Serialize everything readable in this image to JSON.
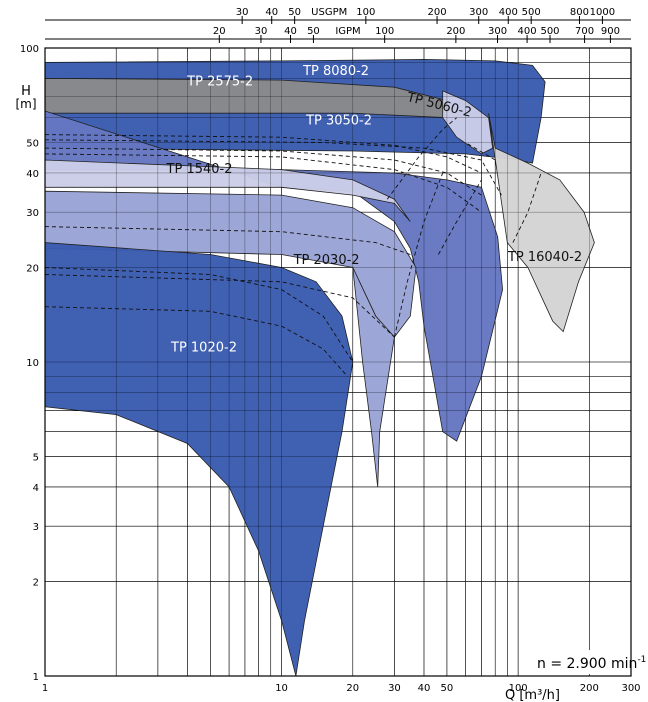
{
  "chart_data": {
    "type": "area",
    "title": "",
    "x_scale": "log",
    "y_scale": "log",
    "xlim": [
      1,
      300
    ],
    "ylim": [
      1,
      100
    ],
    "xlabel": "Q [m³/h]",
    "ylabel_top": "H",
    "ylabel_unit": "[m]",
    "annotation": "n = 2.900 min",
    "annotation_sup": "-1",
    "x_ticks": [
      {
        "v": 1,
        "label": "1"
      },
      {
        "v": 10,
        "label": "10"
      },
      {
        "v": 20,
        "label": "20"
      },
      {
        "v": 30,
        "label": "30"
      },
      {
        "v": 40,
        "label": "40"
      },
      {
        "v": 50,
        "label": "50"
      },
      {
        "v": 100,
        "label": "100"
      },
      {
        "v": 200,
        "label": "200"
      },
      {
        "v": 300,
        "label": "300"
      }
    ],
    "y_ticks": [
      {
        "v": 1,
        "label": "1"
      },
      {
        "v": 2,
        "label": "2"
      },
      {
        "v": 3,
        "label": "3"
      },
      {
        "v": 4,
        "label": "4"
      },
      {
        "v": 5,
        "label": "5"
      },
      {
        "v": 10,
        "label": "10"
      },
      {
        "v": 20,
        "label": "20"
      },
      {
        "v": 30,
        "label": "30"
      },
      {
        "v": 40,
        "label": "40"
      },
      {
        "v": 50,
        "label": "50"
      },
      {
        "v": 100,
        "label": "100"
      }
    ],
    "top_axis_usgpm": {
      "unit_label": "USGPM",
      "unit_at": 70,
      "ticks": [
        {
          "v": 30,
          "label": "30"
        },
        {
          "v": 40,
          "label": "40"
        },
        {
          "v": 50,
          "label": "50"
        },
        {
          "v": 100,
          "label": "100"
        },
        {
          "v": 200,
          "label": "200"
        },
        {
          "v": 300,
          "label": "300"
        },
        {
          "v": 400,
          "label": "400"
        },
        {
          "v": 500,
          "label": "500"
        },
        {
          "v": 800,
          "label": "800"
        },
        {
          "v": 1000,
          "label": "1000"
        }
      ]
    },
    "top_axis_igpm": {
      "unit_label": "IGPM",
      "unit_at": 70,
      "ticks": [
        {
          "v": 20,
          "label": "20"
        },
        {
          "v": 30,
          "label": "30"
        },
        {
          "v": 40,
          "label": "40"
        },
        {
          "v": 50,
          "label": "50"
        },
        {
          "v": 100,
          "label": "100"
        },
        {
          "v": 200,
          "label": "200"
        },
        {
          "v": 300,
          "label": "300"
        },
        {
          "v": 400,
          "label": "400"
        },
        {
          "v": 500,
          "label": "500"
        },
        {
          "v": 700,
          "label": "700"
        },
        {
          "v": 900,
          "label": "900"
        }
      ]
    },
    "colors": {
      "dark_blue": "#3a5bb0",
      "mid_blue": "#6577c2",
      "light_blue": "#9aa4d6",
      "pale_blue": "#cbcde8",
      "dark_grey": "#8a8a8a",
      "light_grey": "#d4d4d4",
      "grid": "#000000",
      "label_light": "#ffffff",
      "label_dark": "#111111"
    },
    "series": [
      {
        "name": "TP 8080-2",
        "label": "TP 8080-2",
        "color": "#3a5bb0",
        "label_color": "#ffffff",
        "label_at": [
          17,
          82
        ],
        "outline": [
          [
            1,
            90
          ],
          [
            1,
            48
          ],
          [
            20,
            47
          ],
          [
            60,
            46
          ],
          [
            100,
            44
          ],
          [
            115,
            43
          ],
          [
            125,
            60
          ],
          [
            130,
            78
          ],
          [
            115,
            88
          ],
          [
            80,
            91
          ],
          [
            40,
            92
          ],
          [
            10,
            91
          ],
          [
            1,
            90
          ]
        ],
        "dashed": []
      },
      {
        "name": "TP 16040-2",
        "label": "TP 16040-2",
        "color": "#d4d4d4",
        "label_color": "#111111",
        "label_at": [
          130,
          21
        ],
        "outline": [
          [
            75,
            62
          ],
          [
            80,
            48
          ],
          [
            110,
            43
          ],
          [
            150,
            38
          ],
          [
            190,
            30
          ],
          [
            210,
            24
          ],
          [
            180,
            18
          ],
          [
            155,
            12.5
          ],
          [
            140,
            13.5
          ],
          [
            110,
            20
          ],
          [
            90,
            24
          ],
          [
            75,
            62
          ]
        ],
        "dashed": []
      },
      {
        "name": "TP 2575-2",
        "label": "TP 2575-2",
        "color": "#8a8a8a",
        "label_color": "#ffffff",
        "label_at": [
          5.5,
          76
        ],
        "outline": [
          [
            1,
            80
          ],
          [
            1,
            62
          ],
          [
            20,
            62
          ],
          [
            50,
            60
          ],
          [
            60,
            58
          ],
          [
            50,
            68
          ],
          [
            30,
            75
          ],
          [
            10,
            79
          ],
          [
            1,
            80
          ]
        ],
        "dashed": []
      },
      {
        "name": "TP 5060-2",
        "label": "TP 5060-2",
        "color": "#cbcde8",
        "label_color": "#111111",
        "label_at": [
          46,
          64
        ],
        "rotate": 14,
        "outline": [
          [
            48,
            73
          ],
          [
            60,
            68
          ],
          [
            75,
            60
          ],
          [
            78,
            48
          ],
          [
            70,
            46
          ],
          [
            55,
            52
          ],
          [
            48,
            60
          ],
          [
            48,
            73
          ]
        ],
        "dashed": []
      },
      {
        "name": "TP 3050-2",
        "label": "TP 3050-2",
        "color": "#6577c2",
        "label_color": "#ffffff",
        "label_at": [
          17.5,
          57
        ],
        "outline": [
          [
            1,
            63
          ],
          [
            1,
            41
          ],
          [
            10,
            41
          ],
          [
            30,
            40
          ],
          [
            50,
            38
          ],
          [
            70,
            36
          ],
          [
            82,
            25
          ],
          [
            86,
            17
          ],
          [
            70,
            9
          ],
          [
            55,
            5.6
          ],
          [
            48,
            6
          ],
          [
            40,
            13
          ],
          [
            38,
            18
          ],
          [
            35,
            23
          ],
          [
            30,
            28
          ],
          [
            20,
            35
          ],
          [
            10,
            36
          ],
          [
            1,
            63
          ]
        ],
        "dashed": [
          [
            [
              1,
              53
            ],
            [
              10,
              52
            ],
            [
              30,
              49
            ],
            [
              50,
              45
            ],
            [
              70,
              40
            ]
          ],
          [
            [
              1,
              48
            ],
            [
              10,
              47
            ],
            [
              30,
              44
            ],
            [
              50,
              40
            ],
            [
              70,
              34
            ]
          ],
          [
            [
              1,
              46
            ],
            [
              10,
              45
            ],
            [
              30,
              41
            ],
            [
              50,
              36
            ],
            [
              70,
              30
            ]
          ],
          [
            [
              1,
              51
            ],
            [
              15,
              50
            ],
            [
              40,
              48
            ],
            [
              70,
              44
            ],
            [
              85,
              34
            ]
          ]
        ]
      },
      {
        "name": "TP 1540-2",
        "label": "TP 1540-2",
        "color": "#cbcde8",
        "label_color": "#111111",
        "label_at": [
          4.5,
          40
        ],
        "outline": [
          [
            1,
            44
          ],
          [
            1,
            36
          ],
          [
            10,
            36
          ],
          [
            20,
            34
          ],
          [
            30,
            32
          ],
          [
            35,
            28
          ],
          [
            30,
            33
          ],
          [
            20,
            38
          ],
          [
            10,
            41
          ],
          [
            1,
            44
          ]
        ],
        "dashed": []
      },
      {
        "name": "TP 2030-2",
        "label": "TP 2030-2",
        "color": "#9aa4d6",
        "label_color": "#111111",
        "label_at": [
          15.5,
          20.5
        ],
        "outline": [
          [
            1,
            35
          ],
          [
            1,
            23
          ],
          [
            10,
            22
          ],
          [
            20,
            20
          ],
          [
            25,
            14
          ],
          [
            30,
            12
          ],
          [
            35,
            14
          ],
          [
            37,
            20
          ],
          [
            30,
            26
          ],
          [
            20,
            31
          ],
          [
            10,
            34
          ],
          [
            1,
            35
          ]
        ],
        "dashed": [
          [
            [
              1,
              27
            ],
            [
              10,
              26
            ],
            [
              25,
              24
            ],
            [
              35,
              22
            ]
          ],
          [
            [
              1,
              19
            ],
            [
              10,
              18
            ],
            [
              20,
              16
            ],
            [
              30,
              12
            ]
          ]
        ]
      },
      {
        "name": "TP 2030-2-body",
        "label": "",
        "color": "#9aa4d6",
        "label_color": "#111111",
        "label_at": [
          0,
          0
        ],
        "outline": [
          [
            20,
            20
          ],
          [
            25,
            14
          ],
          [
            30,
            12
          ],
          [
            26,
            6
          ],
          [
            25.5,
            4
          ],
          [
            24,
            6
          ],
          [
            22,
            10
          ],
          [
            20,
            20
          ]
        ],
        "dashed": []
      },
      {
        "name": "TP 1020-2",
        "label": "TP 1020-2",
        "color": "#3a5bb0",
        "label_color": "#ffffff",
        "label_at": [
          4.7,
          10.8
        ],
        "outline": [
          [
            1,
            24
          ],
          [
            1,
            7.2
          ],
          [
            2,
            6.8
          ],
          [
            4,
            5.5
          ],
          [
            6,
            4
          ],
          [
            8,
            2.5
          ],
          [
            10,
            1.5
          ],
          [
            11.5,
            1
          ],
          [
            12.5,
            1.5
          ],
          [
            15,
            3
          ],
          [
            18,
            6
          ],
          [
            20,
            10
          ],
          [
            18,
            14
          ],
          [
            14,
            18
          ],
          [
            10,
            20
          ],
          [
            5,
            22
          ],
          [
            1,
            24
          ]
        ],
        "dashed": [
          [
            [
              1,
              20
            ],
            [
              5,
              19
            ],
            [
              10,
              17
            ],
            [
              15,
              14
            ],
            [
              20,
              10
            ]
          ],
          [
            [
              1,
              15
            ],
            [
              5,
              14.5
            ],
            [
              10,
              13
            ],
            [
              15,
              11
            ],
            [
              19,
              9
            ]
          ]
        ]
      }
    ],
    "bep_lines": [
      [
        [
          28,
          33
        ],
        [
          38,
          45
        ],
        [
          48,
          55
        ],
        [
          55,
          60
        ]
      ],
      [
        [
          80,
          44
        ],
        [
          60,
          50
        ]
      ],
      [
        [
          95,
          24
        ],
        [
          110,
          30
        ],
        [
          125,
          40
        ]
      ],
      [
        [
          30,
          12
        ],
        [
          34,
          18
        ],
        [
          40,
          28
        ],
        [
          48,
          40
        ]
      ],
      [
        [
          46,
          22
        ],
        [
          55,
          28
        ],
        [
          70,
          38
        ]
      ]
    ]
  }
}
